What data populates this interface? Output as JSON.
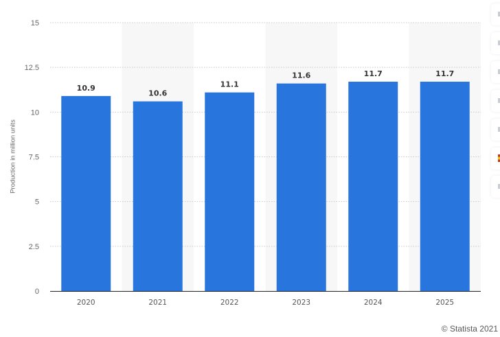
{
  "chart_data": {
    "type": "bar",
    "categories": [
      "2020",
      "2021",
      "2022",
      "2023",
      "2024",
      "2025"
    ],
    "values": [
      10.9,
      10.6,
      11.1,
      11.6,
      11.7,
      11.7
    ],
    "data_labels": [
      "10.9",
      "10.6",
      "11.1",
      "11.6",
      "11.7",
      "11.7"
    ],
    "ylabel": "Production in million units",
    "xlabel": "",
    "ylim": [
      0,
      15
    ],
    "yticks": [
      0,
      2.5,
      5,
      7.5,
      10,
      12.5,
      15
    ],
    "ytick_labels": [
      "0",
      "2.5",
      "5",
      "7.5",
      "10",
      "12.5",
      "15"
    ],
    "grid": true,
    "bar_color": "#2876dd",
    "shaded_column_color": "#f7f7f8"
  },
  "footer": {
    "copyright": "© Statista 2021"
  },
  "side_toolbar": {
    "button_count": 7
  }
}
